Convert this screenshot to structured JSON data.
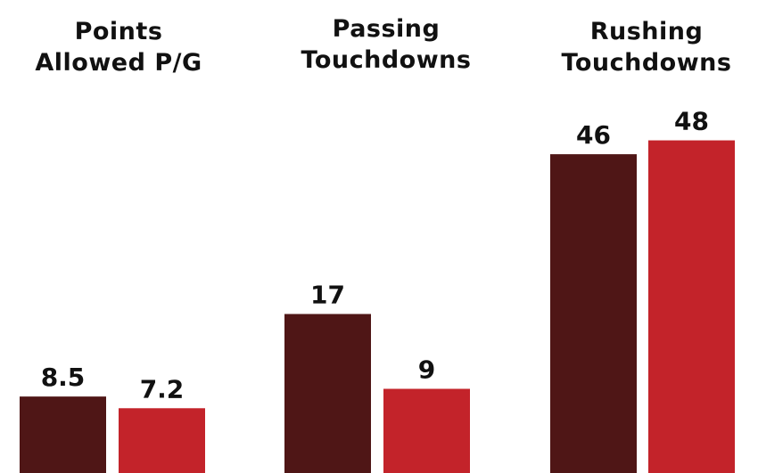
{
  "chart_data": [
    {
      "type": "bar",
      "title_lines": [
        "Points",
        "Allowed P/G"
      ],
      "series": [
        {
          "color": "#4f1616",
          "value": 8.5,
          "label": "8.5"
        },
        {
          "color": "#c3232a",
          "value": 7.2,
          "label": "7.2"
        }
      ]
    },
    {
      "type": "bar",
      "title_lines": [
        "Passing",
        "Touchdowns"
      ],
      "series": [
        {
          "color": "#4f1616",
          "value": 17,
          "label": "17"
        },
        {
          "color": "#c3232a",
          "value": 9,
          "label": "9"
        }
      ]
    },
    {
      "type": "bar",
      "title_lines": [
        "Rushing",
        "Touchdowns"
      ],
      "series": [
        {
          "color": "#4f1616",
          "value": 46,
          "label": "46"
        },
        {
          "color": "#c3232a",
          "value": 48,
          "label": "48"
        }
      ]
    }
  ]
}
